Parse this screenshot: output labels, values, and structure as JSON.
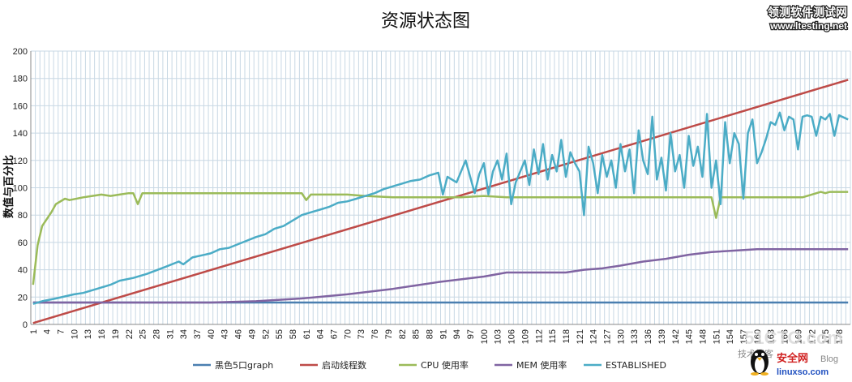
{
  "chart_data": {
    "type": "line",
    "title": "资源状态图",
    "ylabel": "数值与百分比",
    "xlabel": "",
    "ylim": [
      0,
      200
    ],
    "y_ticks": [
      0,
      20,
      40,
      60,
      80,
      100,
      120,
      140,
      160,
      180,
      200
    ],
    "x_range": [
      1,
      180
    ],
    "x_tick_labels": [
      1,
      4,
      7,
      10,
      13,
      16,
      19,
      22,
      25,
      28,
      31,
      34,
      37,
      40,
      43,
      46,
      49,
      52,
      55,
      58,
      61,
      64,
      67,
      70,
      73,
      76,
      79,
      82,
      85,
      88,
      91,
      94,
      97,
      100,
      103,
      106,
      109,
      112,
      115,
      118,
      121,
      124,
      127,
      130,
      133,
      136,
      139,
      142,
      145,
      148,
      151,
      154,
      157,
      160,
      163,
      166,
      169,
      172,
      175,
      178
    ],
    "grid": true,
    "legend_position": "bottom",
    "series": [
      {
        "name": "黑色5口graph",
        "color": "#4a7fb0",
        "points": [
          [
            1,
            16
          ],
          [
            180,
            16
          ]
        ]
      },
      {
        "name": "启动线程数",
        "color": "#be4b48",
        "points": [
          [
            1,
            1
          ],
          [
            180,
            179
          ]
        ]
      },
      {
        "name": "CPU 使用率",
        "color": "#9bbb59",
        "points": [
          [
            1,
            29
          ],
          [
            2,
            58
          ],
          [
            3,
            72
          ],
          [
            5,
            82
          ],
          [
            6,
            88
          ],
          [
            8,
            92
          ],
          [
            9,
            91
          ],
          [
            12,
            93
          ],
          [
            14,
            94
          ],
          [
            16,
            95
          ],
          [
            18,
            94
          ],
          [
            20,
            95
          ],
          [
            22,
            96
          ],
          [
            23,
            96
          ],
          [
            24,
            88
          ],
          [
            25,
            96
          ],
          [
            30,
            96
          ],
          [
            40,
            96
          ],
          [
            50,
            96
          ],
          [
            60,
            96
          ],
          [
            61,
            91
          ],
          [
            62,
            95
          ],
          [
            70,
            95
          ],
          [
            74,
            94
          ],
          [
            80,
            93
          ],
          [
            85,
            93
          ],
          [
            90,
            93
          ],
          [
            95,
            93
          ],
          [
            100,
            94
          ],
          [
            105,
            93
          ],
          [
            110,
            93
          ],
          [
            115,
            93
          ],
          [
            120,
            93
          ],
          [
            125,
            93
          ],
          [
            130,
            93
          ],
          [
            135,
            93
          ],
          [
            140,
            93
          ],
          [
            145,
            93
          ],
          [
            150,
            93
          ],
          [
            151,
            78
          ],
          [
            152,
            93
          ],
          [
            160,
            93
          ],
          [
            165,
            93
          ],
          [
            170,
            93
          ],
          [
            172,
            95
          ],
          [
            174,
            97
          ],
          [
            175,
            96
          ],
          [
            176,
            97
          ],
          [
            180,
            97
          ]
        ]
      },
      {
        "name": "MEM 使用率",
        "color": "#8064a2",
        "points": [
          [
            1,
            16
          ],
          [
            40,
            16
          ],
          [
            50,
            17
          ],
          [
            60,
            19
          ],
          [
            70,
            22
          ],
          [
            80,
            26
          ],
          [
            90,
            31
          ],
          [
            100,
            35
          ],
          [
            105,
            38
          ],
          [
            110,
            38
          ],
          [
            118,
            38
          ],
          [
            122,
            40
          ],
          [
            126,
            41
          ],
          [
            130,
            43
          ],
          [
            135,
            46
          ],
          [
            140,
            48
          ],
          [
            145,
            51
          ],
          [
            150,
            53
          ],
          [
            155,
            54
          ],
          [
            160,
            55
          ],
          [
            170,
            55
          ],
          [
            180,
            55
          ]
        ]
      },
      {
        "name": "ESTABLISHED",
        "color": "#4bacc6",
        "points": [
          [
            1,
            15
          ],
          [
            3,
            17
          ],
          [
            6,
            19
          ],
          [
            10,
            22
          ],
          [
            12,
            23
          ],
          [
            15,
            26
          ],
          [
            18,
            29
          ],
          [
            20,
            32
          ],
          [
            23,
            34
          ],
          [
            26,
            37
          ],
          [
            30,
            42
          ],
          [
            33,
            46
          ],
          [
            34,
            44
          ],
          [
            36,
            49
          ],
          [
            40,
            52
          ],
          [
            42,
            55
          ],
          [
            44,
            56
          ],
          [
            47,
            60
          ],
          [
            50,
            64
          ],
          [
            52,
            66
          ],
          [
            54,
            70
          ],
          [
            56,
            72
          ],
          [
            58,
            76
          ],
          [
            60,
            80
          ],
          [
            62,
            82
          ],
          [
            64,
            84
          ],
          [
            66,
            86
          ],
          [
            68,
            89
          ],
          [
            70,
            90
          ],
          [
            72,
            92
          ],
          [
            74,
            94
          ],
          [
            76,
            96
          ],
          [
            78,
            99
          ],
          [
            80,
            101
          ],
          [
            82,
            103
          ],
          [
            84,
            105
          ],
          [
            86,
            106
          ],
          [
            88,
            109
          ],
          [
            90,
            111
          ],
          [
            91,
            95
          ],
          [
            92,
            108
          ],
          [
            94,
            104
          ],
          [
            96,
            120
          ],
          [
            97,
            108
          ],
          [
            98,
            96
          ],
          [
            99,
            110
          ],
          [
            100,
            118
          ],
          [
            101,
            95
          ],
          [
            102,
            112
          ],
          [
            103,
            120
          ],
          [
            104,
            106
          ],
          [
            105,
            125
          ],
          [
            106,
            88
          ],
          [
            107,
            104
          ],
          [
            108,
            112
          ],
          [
            109,
            120
          ],
          [
            110,
            102
          ],
          [
            111,
            128
          ],
          [
            112,
            110
          ],
          [
            113,
            132
          ],
          [
            114,
            106
          ],
          [
            115,
            124
          ],
          [
            116,
            112
          ],
          [
            117,
            135
          ],
          [
            118,
            108
          ],
          [
            119,
            126
          ],
          [
            120,
            118
          ],
          [
            121,
            112
          ],
          [
            122,
            80
          ],
          [
            123,
            130
          ],
          [
            124,
            118
          ],
          [
            125,
            96
          ],
          [
            126,
            124
          ],
          [
            127,
            108
          ],
          [
            128,
            120
          ],
          [
            129,
            100
          ],
          [
            130,
            132
          ],
          [
            131,
            112
          ],
          [
            132,
            128
          ],
          [
            133,
            96
          ],
          [
            134,
            142
          ],
          [
            135,
            120
          ],
          [
            136,
            110
          ],
          [
            137,
            152
          ],
          [
            138,
            106
          ],
          [
            139,
            122
          ],
          [
            140,
            98
          ],
          [
            141,
            140
          ],
          [
            142,
            112
          ],
          [
            143,
            124
          ],
          [
            144,
            100
          ],
          [
            145,
            138
          ],
          [
            146,
            116
          ],
          [
            147,
            130
          ],
          [
            148,
            108
          ],
          [
            149,
            154
          ],
          [
            150,
            100
          ],
          [
            151,
            120
          ],
          [
            152,
            88
          ],
          [
            153,
            148
          ],
          [
            154,
            118
          ],
          [
            155,
            140
          ],
          [
            156,
            132
          ],
          [
            157,
            92
          ],
          [
            158,
            140
          ],
          [
            159,
            150
          ],
          [
            160,
            118
          ],
          [
            161,
            126
          ],
          [
            162,
            136
          ],
          [
            163,
            148
          ],
          [
            164,
            146
          ],
          [
            165,
            155
          ],
          [
            166,
            142
          ],
          [
            167,
            152
          ],
          [
            168,
            150
          ],
          [
            169,
            128
          ],
          [
            170,
            152
          ],
          [
            171,
            153
          ],
          [
            172,
            152
          ],
          [
            173,
            138
          ],
          [
            174,
            152
          ],
          [
            175,
            150
          ],
          [
            176,
            154
          ],
          [
            177,
            138
          ],
          [
            178,
            153
          ],
          [
            180,
            150
          ]
        ]
      }
    ]
  },
  "watermarks": {
    "top_right_1": "领测软件测试网",
    "top_right_2": "www.ltesting.net",
    "bottom_right_1": "51CTO.com",
    "bottom_right_2": "技术博客",
    "bottom_right_3": "安全网",
    "bottom_right_4": "linuxso.com",
    "bottom_right_5": "Blog"
  }
}
